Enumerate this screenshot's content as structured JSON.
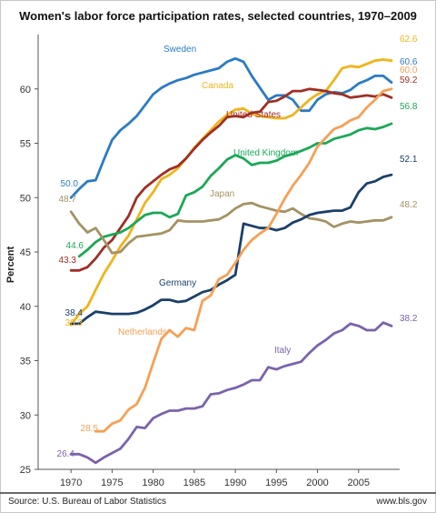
{
  "chart_data": {
    "type": "line",
    "title": "Women's labor force participation rates, selected countries, 1970–2009",
    "xlabel": "",
    "ylabel": "Percent",
    "xlim": [
      1966,
      2010
    ],
    "ylim": [
      25,
      65
    ],
    "xticks": [
      1970,
      1975,
      1980,
      1985,
      1990,
      1995,
      2000,
      2005
    ],
    "yticks": [
      25,
      30,
      35,
      40,
      45,
      50,
      55,
      60
    ],
    "grid": false,
    "legend": "none",
    "series": [
      {
        "name": "Sweden",
        "color": "#2a7bc4",
        "start_label": "50.0",
        "end_label": "60.6",
        "x": [
          1970,
          1971,
          1972,
          1973,
          1974,
          1975,
          1976,
          1977,
          1978,
          1979,
          1980,
          1981,
          1982,
          1983,
          1984,
          1985,
          1986,
          1987,
          1988,
          1989,
          1990,
          1991,
          1992,
          1993,
          1994,
          1995,
          1996,
          1997,
          1998,
          1999,
          2000,
          2001,
          2002,
          2003,
          2004,
          2005,
          2006,
          2007,
          2008,
          2009
        ],
        "y": [
          50.0,
          50.8,
          51.5,
          51.6,
          53.5,
          55.3,
          56.2,
          56.8,
          57.5,
          58.5,
          59.5,
          60.1,
          60.5,
          60.8,
          61.0,
          61.3,
          61.5,
          61.7,
          61.9,
          62.5,
          62.8,
          62.5,
          61.2,
          60.1,
          59.0,
          59.4,
          59.4,
          59.0,
          58.0,
          58.0,
          59.0,
          59.5,
          59.7,
          59.6,
          59.9,
          60.5,
          60.8,
          61.2,
          61.2,
          60.6
        ]
      },
      {
        "name": "Canada",
        "color": "#f0b41a",
        "start_label": "38.3",
        "end_label": "62.6",
        "x": [
          1970,
          1971,
          1972,
          1973,
          1974,
          1975,
          1976,
          1977,
          1978,
          1979,
          1980,
          1981,
          1982,
          1983,
          1984,
          1985,
          1986,
          1987,
          1988,
          1989,
          1990,
          1991,
          1992,
          1993,
          1994,
          1995,
          1996,
          1997,
          1998,
          1999,
          2000,
          2001,
          2002,
          2003,
          2004,
          2005,
          2006,
          2007,
          2008,
          2009
        ],
        "y": [
          38.3,
          39.3,
          40.0,
          41.5,
          43.0,
          44.2,
          45.5,
          46.5,
          48.0,
          49.5,
          50.5,
          51.7,
          52.1,
          52.7,
          53.6,
          54.6,
          55.4,
          56.2,
          57.0,
          57.6,
          58.1,
          58.2,
          57.7,
          57.5,
          57.4,
          57.3,
          57.3,
          57.6,
          58.3,
          59.0,
          59.5,
          59.8,
          60.8,
          61.9,
          62.1,
          62.0,
          62.3,
          62.6,
          62.7,
          62.6
        ]
      },
      {
        "name": "United States",
        "color": "#a02e24",
        "start_label": "43.3",
        "end_label": "59.2",
        "x": [
          1970,
          1971,
          1972,
          1973,
          1974,
          1975,
          1976,
          1977,
          1978,
          1979,
          1980,
          1981,
          1982,
          1983,
          1984,
          1985,
          1986,
          1987,
          1988,
          1989,
          1990,
          1991,
          1992,
          1993,
          1994,
          1995,
          1996,
          1997,
          1998,
          1999,
          2000,
          2001,
          2002,
          2003,
          2004,
          2005,
          2006,
          2007,
          2008,
          2009
        ],
        "y": [
          43.3,
          43.3,
          43.6,
          44.4,
          45.4,
          46.1,
          47.2,
          48.3,
          50.0,
          50.9,
          51.5,
          52.1,
          52.6,
          52.9,
          53.6,
          54.5,
          55.3,
          56.0,
          56.6,
          57.4,
          57.5,
          57.4,
          57.8,
          57.9,
          58.8,
          58.9,
          59.3,
          59.8,
          59.8,
          60.0,
          59.9,
          59.8,
          59.6,
          59.5,
          59.2,
          59.3,
          59.4,
          59.3,
          59.5,
          59.2
        ]
      },
      {
        "name": "United Kingdom",
        "color": "#1aa856",
        "start_label": "44.6",
        "end_label": "56.8",
        "x": [
          1971,
          1972,
          1973,
          1974,
          1975,
          1976,
          1977,
          1978,
          1979,
          1980,
          1981,
          1982,
          1983,
          1984,
          1985,
          1986,
          1987,
          1988,
          1989,
          1990,
          1991,
          1992,
          1993,
          1994,
          1995,
          1996,
          1997,
          1998,
          1999,
          2000,
          2001,
          2002,
          2003,
          2004,
          2005,
          2006,
          2007,
          2008,
          2009
        ],
        "y": [
          44.6,
          45.2,
          45.9,
          46.4,
          46.6,
          46.8,
          47.2,
          47.8,
          48.4,
          48.6,
          48.6,
          48.2,
          48.5,
          50.2,
          50.5,
          51.0,
          52.0,
          52.7,
          53.5,
          53.9,
          53.6,
          53.0,
          53.2,
          53.2,
          53.4,
          53.8,
          54.0,
          54.3,
          54.6,
          55.0,
          55.0,
          55.4,
          55.6,
          55.8,
          56.2,
          56.4,
          56.3,
          56.5,
          56.8
        ]
      },
      {
        "name": "Japan",
        "color": "#a59263",
        "start_label": "48.7",
        "end_label": "48.2",
        "x": [
          1970,
          1971,
          1972,
          1973,
          1974,
          1975,
          1976,
          1977,
          1978,
          1979,
          1980,
          1981,
          1982,
          1983,
          1984,
          1985,
          1986,
          1987,
          1988,
          1989,
          1990,
          1991,
          1992,
          1993,
          1994,
          1995,
          1996,
          1997,
          1998,
          1999,
          2000,
          2001,
          2002,
          2003,
          2004,
          2005,
          2006,
          2007,
          2008,
          2009
        ],
        "y": [
          48.7,
          47.6,
          46.8,
          47.2,
          46.1,
          44.9,
          45.0,
          45.8,
          46.4,
          46.5,
          46.6,
          46.7,
          47.0,
          47.9,
          47.8,
          47.8,
          47.8,
          47.9,
          48.0,
          48.4,
          49.0,
          49.4,
          49.5,
          49.2,
          49.0,
          48.8,
          48.7,
          49.0,
          48.5,
          48.1,
          48.0,
          47.8,
          47.3,
          47.6,
          47.8,
          47.7,
          47.8,
          47.9,
          47.9,
          48.2
        ]
      },
      {
        "name": "Germany",
        "color": "#1b3f6b",
        "start_label": "38.4",
        "end_label": "52.1",
        "x": [
          1970,
          1971,
          1972,
          1973,
          1974,
          1975,
          1976,
          1977,
          1978,
          1979,
          1980,
          1981,
          1982,
          1983,
          1984,
          1985,
          1986,
          1987,
          1988,
          1989,
          1990,
          1991,
          1992,
          1993,
          1994,
          1995,
          1996,
          1997,
          1998,
          1999,
          2000,
          2001,
          2002,
          2003,
          2004,
          2005,
          2006,
          2007,
          2008,
          2009
        ],
        "y": [
          38.4,
          38.4,
          39.0,
          39.5,
          39.4,
          39.3,
          39.3,
          39.3,
          39.4,
          39.7,
          40.1,
          40.6,
          40.6,
          40.4,
          40.5,
          40.9,
          41.3,
          41.5,
          42.0,
          42.4,
          42.9,
          47.6,
          47.4,
          47.2,
          47.2,
          47.0,
          47.2,
          47.7,
          48.0,
          48.4,
          48.6,
          48.7,
          48.8,
          48.8,
          49.1,
          50.5,
          51.3,
          51.5,
          51.9,
          52.1
        ]
      },
      {
        "name": "Netherlands",
        "color": "#f5a055",
        "start_label": "28.5",
        "end_label": "60.0",
        "x": [
          1973,
          1974,
          1975,
          1976,
          1977,
          1978,
          1979,
          1980,
          1981,
          1982,
          1983,
          1984,
          1985,
          1986,
          1987,
          1988,
          1989,
          1990,
          1991,
          1992,
          1993,
          1994,
          1995,
          1996,
          1997,
          1998,
          1999,
          2000,
          2001,
          2002,
          2003,
          2004,
          2005,
          2006,
          2007,
          2008,
          2009
        ],
        "y": [
          28.5,
          28.5,
          29.2,
          29.5,
          30.5,
          31.0,
          32.5,
          34.8,
          37.0,
          37.8,
          37.2,
          38.0,
          37.8,
          40.5,
          41.0,
          42.5,
          42.9,
          44.0,
          45.2,
          46.1,
          46.7,
          47.2,
          48.5,
          49.9,
          51.1,
          52.1,
          53.2,
          54.7,
          55.5,
          56.3,
          56.6,
          57.1,
          57.4,
          58.3,
          59.0,
          59.8,
          60.0
        ]
      },
      {
        "name": "Italy",
        "color": "#7a63ac",
        "start_label": "26.4",
        "end_label": "38.2",
        "x": [
          1970,
          1971,
          1972,
          1973,
          1974,
          1975,
          1976,
          1977,
          1978,
          1979,
          1980,
          1981,
          1982,
          1983,
          1984,
          1985,
          1986,
          1987,
          1988,
          1989,
          1990,
          1991,
          1992,
          1993,
          1994,
          1995,
          1996,
          1997,
          1998,
          1999,
          2000,
          2001,
          2002,
          2003,
          2004,
          2005,
          2006,
          2007,
          2008,
          2009
        ],
        "y": [
          26.4,
          26.4,
          26.1,
          25.6,
          26.1,
          26.5,
          26.9,
          27.8,
          28.9,
          28.8,
          29.7,
          30.1,
          30.4,
          30.4,
          30.6,
          30.6,
          30.8,
          31.9,
          32.0,
          32.3,
          32.5,
          32.8,
          33.2,
          33.2,
          34.4,
          34.2,
          34.5,
          34.7,
          34.9,
          35.7,
          36.4,
          36.9,
          37.5,
          37.8,
          38.4,
          38.2,
          37.8,
          37.8,
          38.5,
          38.2
        ]
      }
    ]
  },
  "footer": {
    "source": "Source: U.S. Bureau of Labor Statistics",
    "site": "www.bls.gov"
  }
}
